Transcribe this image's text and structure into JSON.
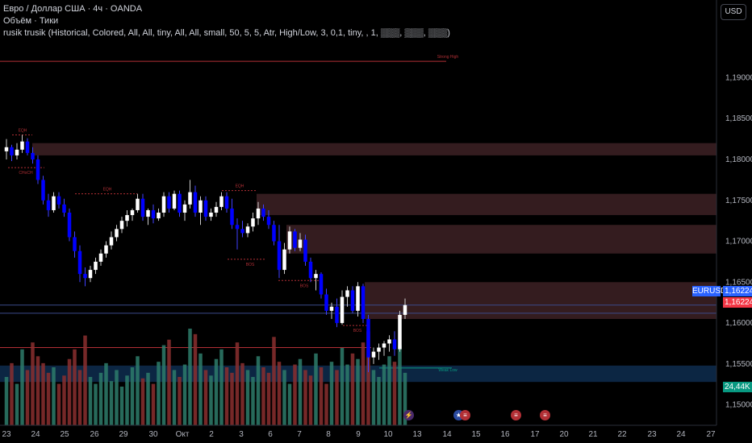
{
  "legend": {
    "title": "Евро / Доллар США · 4ч · OANDA",
    "volume": "Объём · Тики",
    "indicator": "rusik trusik (Historical, Colored, All, All, tiny, All, All, small, 50, 5, 5, Atr, High/Low, 3, 0,1, tiny, , 1, ▒▒▒, ▒▒▒, ▒▒▒)"
  },
  "currency_button": "USD",
  "symbol_tag": "EURUSD",
  "price_tags": {
    "last_a": "1,16224",
    "last_b": "1,16224",
    "volume": "24,44K"
  },
  "colors": {
    "up": "#ffffff",
    "down": "#0000ff",
    "zone": "#3a1f22",
    "zone_blue": "#0d2a4a",
    "vol_up": "#2e7d6b",
    "vol_down": "#8b2f2f",
    "level_red": "#b22f35",
    "price_red": "#f23645",
    "price_green": "#089981",
    "symbol_blue": "#2962ff"
  },
  "annotations": {
    "strong_high": "Strong High",
    "weak_low": "Weak Low",
    "eqh": "EQH",
    "choch": "CHoCH",
    "bos": "BOS"
  },
  "chart_data": {
    "type": "candlestick",
    "timeframe": "4h",
    "y_ticks": [
      "1,19000",
      "1,18500",
      "1,18000",
      "1,17500",
      "1,17000",
      "1,16500",
      "1,16000",
      "1,15500",
      "1,15000"
    ],
    "y_tick_values": [
      1.19,
      1.185,
      1.18,
      1.175,
      1.17,
      1.165,
      1.16,
      1.155,
      1.15
    ],
    "ylim": [
      1.1475,
      1.1995
    ],
    "x_ticks": [
      "23",
      "24",
      "25",
      "26",
      "29",
      "30",
      "Окт",
      "2",
      "3",
      "6",
      "7",
      "8",
      "9",
      "10",
      "13",
      "14",
      "15",
      "16",
      "17",
      "20",
      "21",
      "22",
      "23",
      "24",
      "27"
    ],
    "last_price": 1.16224,
    "last_volume": "24,44K",
    "series": [
      {
        "name": "EURUSD",
        "ohlc": [
          [
            1.181,
            1.1825,
            1.18,
            1.1815
          ],
          [
            1.1815,
            1.1818,
            1.1798,
            1.1805
          ],
          [
            1.1805,
            1.182,
            1.18,
            1.1812
          ],
          [
            1.1812,
            1.183,
            1.1808,
            1.1822
          ],
          [
            1.1822,
            1.1826,
            1.1805,
            1.1808
          ],
          [
            1.1808,
            1.1815,
            1.1795,
            1.18
          ],
          [
            1.18,
            1.1805,
            1.177,
            1.1775
          ],
          [
            1.1775,
            1.178,
            1.1745,
            1.175
          ],
          [
            1.175,
            1.1758,
            1.173,
            1.1738
          ],
          [
            1.1738,
            1.176,
            1.1735,
            1.1755
          ],
          [
            1.1755,
            1.176,
            1.174,
            1.1745
          ],
          [
            1.1745,
            1.1752,
            1.173,
            1.1735
          ],
          [
            1.1735,
            1.174,
            1.17,
            1.1705
          ],
          [
            1.1705,
            1.1712,
            1.168,
            1.1688
          ],
          [
            1.1688,
            1.1695,
            1.165,
            1.166
          ],
          [
            1.166,
            1.1668,
            1.1645,
            1.1655
          ],
          [
            1.1655,
            1.167,
            1.165,
            1.1665
          ],
          [
            1.1665,
            1.168,
            1.166,
            1.1675
          ],
          [
            1.1675,
            1.169,
            1.167,
            1.1685
          ],
          [
            1.1685,
            1.17,
            1.168,
            1.1695
          ],
          [
            1.1695,
            1.1712,
            1.169,
            1.1705
          ],
          [
            1.1705,
            1.172,
            1.17,
            1.1715
          ],
          [
            1.1715,
            1.173,
            1.171,
            1.1725
          ],
          [
            1.1725,
            1.1738,
            1.1718,
            1.1732
          ],
          [
            1.1732,
            1.174,
            1.1725,
            1.1738
          ],
          [
            1.1738,
            1.1758,
            1.1735,
            1.1752
          ],
          [
            1.1752,
            1.1758,
            1.1725,
            1.173
          ],
          [
            1.173,
            1.174,
            1.172,
            1.1738
          ],
          [
            1.1738,
            1.1745,
            1.1722,
            1.1728
          ],
          [
            1.1728,
            1.174,
            1.1725,
            1.1735
          ],
          [
            1.1735,
            1.176,
            1.173,
            1.1755
          ],
          [
            1.1755,
            1.176,
            1.1735,
            1.174
          ],
          [
            1.174,
            1.1762,
            1.1738,
            1.1758
          ],
          [
            1.1758,
            1.1762,
            1.173,
            1.1735
          ],
          [
            1.1735,
            1.175,
            1.1725,
            1.1745
          ],
          [
            1.1745,
            1.1775,
            1.174,
            1.176
          ],
          [
            1.176,
            1.1768,
            1.173,
            1.1735
          ],
          [
            1.1735,
            1.1755,
            1.172,
            1.175
          ],
          [
            1.175,
            1.1755,
            1.1725,
            1.173
          ],
          [
            1.173,
            1.174,
            1.1725,
            1.1735
          ],
          [
            1.1735,
            1.1748,
            1.173,
            1.1742
          ],
          [
            1.1742,
            1.176,
            1.1738,
            1.1755
          ],
          [
            1.1755,
            1.176,
            1.1735,
            1.174
          ],
          [
            1.174,
            1.1752,
            1.1715,
            1.172
          ],
          [
            1.172,
            1.1728,
            1.169,
            1.1715
          ],
          [
            1.1715,
            1.1725,
            1.1705,
            1.171
          ],
          [
            1.171,
            1.1722,
            1.1705,
            1.1718
          ],
          [
            1.1718,
            1.1735,
            1.1712,
            1.1728
          ],
          [
            1.1728,
            1.1748,
            1.172,
            1.174
          ],
          [
            1.174,
            1.1745,
            1.1725,
            1.173
          ],
          [
            1.173,
            1.1738,
            1.1715,
            1.172
          ],
          [
            1.172,
            1.1725,
            1.1695,
            1.17
          ],
          [
            1.17,
            1.172,
            1.1655,
            1.1665
          ],
          [
            1.1665,
            1.1698,
            1.166,
            1.169
          ],
          [
            1.169,
            1.1718,
            1.1685,
            1.1712
          ],
          [
            1.1712,
            1.1715,
            1.1688,
            1.1692
          ],
          [
            1.1692,
            1.171,
            1.1688,
            1.1702
          ],
          [
            1.1702,
            1.1708,
            1.167,
            1.1675
          ],
          [
            1.1675,
            1.168,
            1.165,
            1.1655
          ],
          [
            1.1655,
            1.1665,
            1.164,
            1.166
          ],
          [
            1.166,
            1.1662,
            1.163,
            1.1635
          ],
          [
            1.1635,
            1.1642,
            1.161,
            1.1615
          ],
          [
            1.1615,
            1.1625,
            1.1605,
            1.162
          ],
          [
            1.162,
            1.163,
            1.1595,
            1.16
          ],
          [
            1.16,
            1.164,
            1.1598,
            1.1632
          ],
          [
            1.1632,
            1.1645,
            1.162,
            1.164
          ],
          [
            1.164,
            1.1645,
            1.1612,
            1.1615
          ],
          [
            1.1615,
            1.165,
            1.1608,
            1.1645
          ],
          [
            1.1645,
            1.1648,
            1.16,
            1.1605
          ],
          [
            1.1605,
            1.161,
            1.154,
            1.1558
          ],
          [
            1.1558,
            1.157,
            1.155,
            1.1565
          ],
          [
            1.1565,
            1.1575,
            1.1555,
            1.157
          ],
          [
            1.157,
            1.1578,
            1.156,
            1.1575
          ],
          [
            1.1575,
            1.1585,
            1.1565,
            1.158
          ],
          [
            1.158,
            1.159,
            1.156,
            1.1568
          ],
          [
            1.1568,
            1.1615,
            1.1565,
            1.161
          ],
          [
            1.161,
            1.163,
            1.1605,
            1.1622
          ]
        ],
        "volume": [
          35,
          45,
          30,
          55,
          40,
          60,
          50,
          45,
          38,
          42,
          30,
          36,
          48,
          55,
          40,
          65,
          35,
          30,
          38,
          45,
          32,
          40,
          28,
          36,
          42,
          50,
          34,
          38,
          30,
          46,
          58,
          62,
          40,
          35,
          44,
          70,
          66,
          52,
          40,
          36,
          48,
          55,
          42,
          38,
          60,
          45,
          40,
          35,
          50,
          42,
          38,
          64,
          46,
          40,
          30,
          44,
          48,
          40,
          36,
          52,
          42,
          30,
          46,
          40,
          56,
          44,
          52,
          48,
          60,
          68,
          40,
          35,
          44,
          50,
          46,
          58,
          38
        ]
      }
    ]
  }
}
